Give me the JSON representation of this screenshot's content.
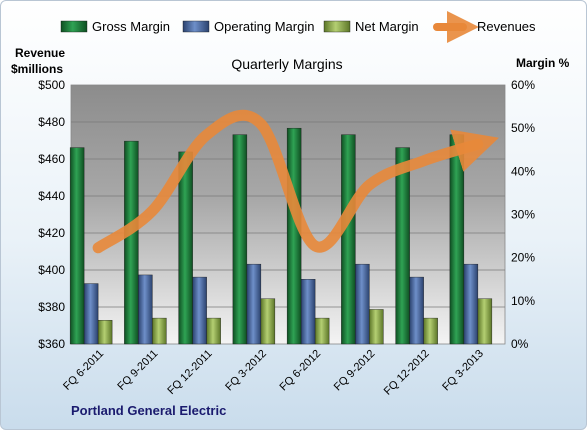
{
  "chart_data": {
    "type": "bar",
    "title": "Quarterly Margins",
    "company_label": "Portland General Electric",
    "left_axis": {
      "label_line1": "Revenue",
      "label_line2": "$millions",
      "min": 360,
      "max": 500,
      "step": 20,
      "ticks": [
        "$360",
        "$380",
        "$400",
        "$420",
        "$440",
        "$460",
        "$480",
        "$500"
      ]
    },
    "right_axis": {
      "label": "Margin %",
      "min": 0,
      "max": 60,
      "step": 10,
      "ticks": [
        "0%",
        "10%",
        "20%",
        "30%",
        "40%",
        "50%",
        "60%"
      ]
    },
    "categories": [
      "FQ 6-2011",
      "FQ 9-2011",
      "FQ 12-2011",
      "FQ 3-2012",
      "FQ 6-2012",
      "FQ 9-2012",
      "FQ 12-2012",
      "FQ 3-2013"
    ],
    "series": [
      {
        "name": "Gross Margin",
        "axis": "right",
        "color": "#1f7a3a",
        "values": [
          45.5,
          47,
          44.5,
          48.5,
          50,
          48.5,
          45.5,
          48.5
        ]
      },
      {
        "name": "Operating Margin",
        "axis": "right",
        "color": "#4f6fa8",
        "values": [
          14,
          16,
          15.5,
          18.5,
          15,
          18.5,
          15.5,
          18.5
        ]
      },
      {
        "name": "Net Margin",
        "axis": "right",
        "color": "#8aa84a",
        "values": [
          5.5,
          6,
          6,
          10.5,
          6,
          8,
          6,
          10.5
        ]
      },
      {
        "name": "Revenues",
        "axis": "left",
        "type": "line",
        "color": "#e8883a",
        "values": [
          412,
          432,
          473,
          479,
          413,
          446,
          459,
          468
        ]
      }
    ],
    "legend_position": "top",
    "grid": true
  }
}
